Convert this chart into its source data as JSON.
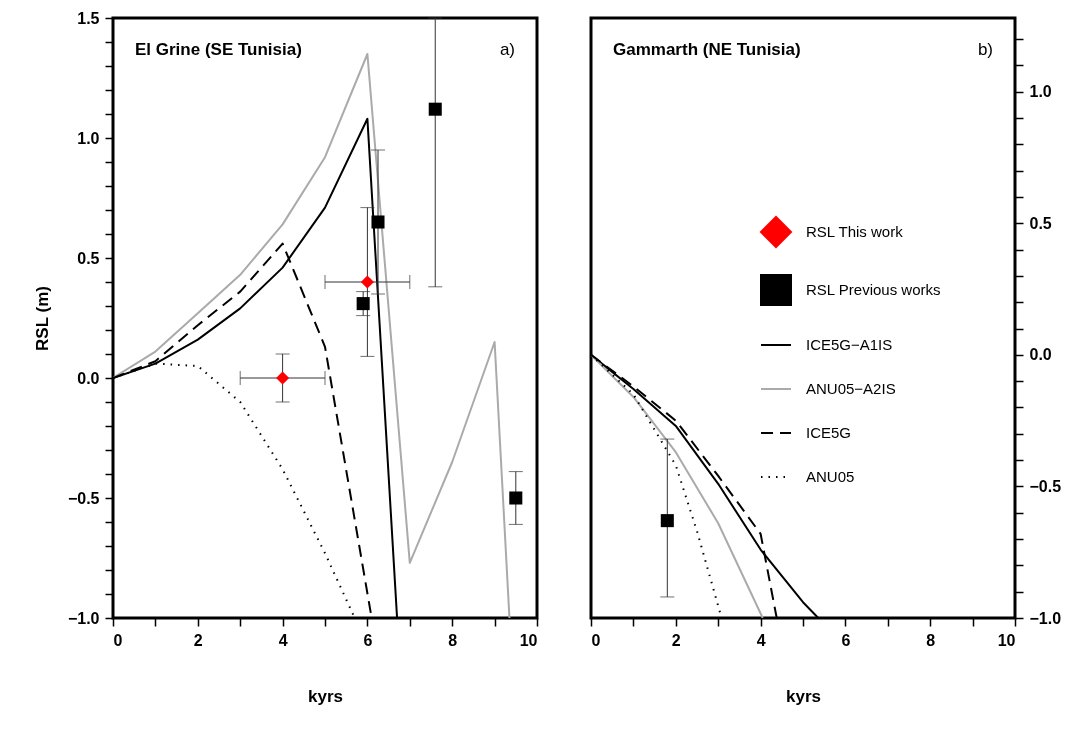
{
  "chart_data": [
    {
      "type": "line",
      "title": "El Grine (SE Tunisia)",
      "annotations": [
        "a)"
      ],
      "xlabel": "kyrs",
      "ylabel": "RSL (m)",
      "xlim": [
        0,
        10
      ],
      "xticks": [
        0,
        {
          "value": 1,
          "label": null
        },
        2,
        {
          "value": 3,
          "label": null
        },
        4,
        {
          "value": 5,
          "label": null
        },
        6,
        {
          "value": 7,
          "label": null
        },
        8,
        {
          "value": 9,
          "label": null
        },
        10
      ],
      "ylim": [
        -1,
        1.5
      ],
      "yticks": [
        {
          "value": -1,
          "label": "−1.0"
        },
        {
          "value": -0.9,
          "label": null
        },
        {
          "value": -0.8,
          "label": null
        },
        {
          "value": -0.7,
          "label": null
        },
        {
          "value": -0.6,
          "label": null
        },
        {
          "value": -0.5,
          "label": "−0.5"
        },
        {
          "value": -0.4,
          "label": null
        },
        {
          "value": -0.3,
          "label": null
        },
        {
          "value": -0.2,
          "label": null
        },
        {
          "value": -0.1,
          "label": null
        },
        {
          "value": 0,
          "label": "0.0"
        },
        {
          "value": 0.1,
          "label": null
        },
        {
          "value": 0.2,
          "label": null
        },
        {
          "value": 0.3,
          "label": null
        },
        {
          "value": 0.4,
          "label": null
        },
        0.5,
        {
          "value": 0.6,
          "label": null
        },
        {
          "value": 0.7,
          "label": null
        },
        {
          "value": 0.8,
          "label": null
        },
        {
          "value": 0.9,
          "label": null
        },
        {
          "value": 1,
          "label": "1.0"
        },
        {
          "value": 1.1,
          "label": null
        },
        {
          "value": 1.2,
          "label": null
        },
        {
          "value": 1.3,
          "label": null
        },
        {
          "value": 1.4,
          "label": null
        },
        1.5
      ],
      "series": [
        {
          "color": "#000000",
          "line_style": "solid",
          "x": [
            0,
            1,
            2,
            3,
            4,
            5,
            6,
            6.7
          ],
          "values": [
            0,
            0.06,
            0.16,
            0.29,
            0.46,
            0.71,
            1.08,
            -1.0
          ]
        },
        {
          "color": "#aaaaaa",
          "line_style": "solid",
          "x": [
            0,
            1,
            2,
            3,
            4,
            5,
            6,
            7,
            8,
            9,
            9.35
          ],
          "values": [
            0,
            0.11,
            0.27,
            0.43,
            0.64,
            0.92,
            1.35,
            -0.77,
            -0.35,
            0.15,
            -1.0
          ]
        },
        {
          "color": "#000000",
          "line_style": "dashed",
          "x": [
            0,
            1,
            2,
            3,
            4,
            5,
            6.1
          ],
          "values": [
            0,
            0.07,
            0.22,
            0.36,
            0.56,
            0.13,
            -1.0
          ]
        },
        {
          "color": "#000000",
          "line_style": "dotted",
          "x": [
            0,
            1,
            2,
            3,
            4,
            5,
            5.7
          ],
          "values": [
            0,
            0.06,
            0.05,
            -0.1,
            -0.38,
            -0.73,
            -1.0
          ]
        },
        {
          "type": "scatter",
          "color": "#ff0000",
          "marker": "diamond",
          "x": [
            4,
            6
          ],
          "values": [
            0,
            0.4
          ],
          "errors": [
            0.1,
            [
              0.09,
              0.71
            ]
          ],
          "xerrors": [
            1,
            1
          ]
        },
        {
          "type": "scatter",
          "color": "#000000",
          "marker": "square",
          "x": [
            5.9,
            6.25,
            7.6,
            9.5
          ],
          "values": [
            0.31,
            0.65,
            1.12,
            -0.5
          ],
          "errors": [
            [
              0.26,
              0.36
            ],
            [
              0.35,
              0.95
            ],
            [
              0.38,
              1.5
            ],
            [
              -0.61,
              -0.39
            ]
          ]
        }
      ]
    },
    {
      "type": "line",
      "title": "Gammarth (NE Tunisia)",
      "annotations": [
        "b)"
      ],
      "xlabel": "kyrs",
      "legend": "right",
      "xlim": [
        0,
        10
      ],
      "xticks": [
        0,
        {
          "value": 1,
          "label": null
        },
        2,
        {
          "value": 3,
          "label": null
        },
        4,
        {
          "value": 5,
          "label": null
        },
        6,
        {
          "value": 7,
          "label": null
        },
        8,
        {
          "value": 9,
          "label": null
        },
        10
      ],
      "y2lim": [
        -1,
        1.28
      ],
      "y2ticks": [
        {
          "value": -1,
          "label": "−1.0"
        },
        {
          "value": -0.9,
          "label": null
        },
        {
          "value": -0.8,
          "label": null
        },
        {
          "value": -0.7,
          "label": null
        },
        {
          "value": -0.6,
          "label": null
        },
        {
          "value": -0.5,
          "label": "−0.5"
        },
        {
          "value": -0.4,
          "label": null
        },
        {
          "value": -0.3,
          "label": null
        },
        {
          "value": -0.2,
          "label": null
        },
        {
          "value": -0.1,
          "label": null
        },
        {
          "value": 0,
          "label": "0.0"
        },
        {
          "value": 0.1,
          "label": null
        },
        {
          "value": 0.2,
          "label": null
        },
        {
          "value": 0.3,
          "label": null
        },
        {
          "value": 0.4,
          "label": null
        },
        0.5,
        {
          "value": 0.6,
          "label": null
        },
        {
          "value": 0.7,
          "label": null
        },
        {
          "value": 0.8,
          "label": null
        },
        {
          "value": 0.9,
          "label": null
        },
        {
          "value": 1,
          "label": "1.0"
        },
        {
          "value": 1.1,
          "label": null
        },
        {
          "value": 1.2,
          "label": null
        }
      ],
      "series": [
        {
          "type": "scatter",
          "name": "RSL This work",
          "color": "#ff0000",
          "marker": "diamond",
          "axis": "y2"
        },
        {
          "type": "scatter",
          "name": "RSL Previous works",
          "color": "#000000",
          "marker": "square",
          "axis": "y2",
          "x": [
            1.8
          ],
          "values": [
            -0.63
          ],
          "errors": [
            [
              -0.92,
              -0.32
            ]
          ]
        },
        {
          "name": "ICE5G−A1IS",
          "color": "#000000",
          "line_style": "solid",
          "axis": "y2",
          "x": [
            0,
            1,
            2,
            3,
            4,
            5,
            5.36
          ],
          "values": [
            0,
            -0.13,
            -0.27,
            -0.49,
            -0.74,
            -0.94,
            -1.0
          ]
        },
        {
          "name": "ANU05−A2IS",
          "color": "#aaaaaa",
          "line_style": "solid",
          "axis": "y2",
          "x": [
            0,
            1,
            2,
            3,
            4.05
          ],
          "values": [
            0,
            -0.16,
            -0.37,
            -0.64,
            -1.0
          ]
        },
        {
          "name": "ICE5G",
          "color": "#000000",
          "line_style": "dashed",
          "axis": "y2",
          "x": [
            0,
            1,
            2,
            3,
            4,
            4.38
          ],
          "values": [
            0,
            -0.12,
            -0.25,
            -0.46,
            -0.68,
            -1.0
          ]
        },
        {
          "name": "ANU05",
          "color": "#000000",
          "line_style": "dotted",
          "axis": "y2",
          "x": [
            0,
            1,
            2,
            2.5,
            3.08
          ],
          "values": [
            0,
            -0.15,
            -0.42,
            -0.67,
            -1.0
          ]
        }
      ]
    }
  ]
}
